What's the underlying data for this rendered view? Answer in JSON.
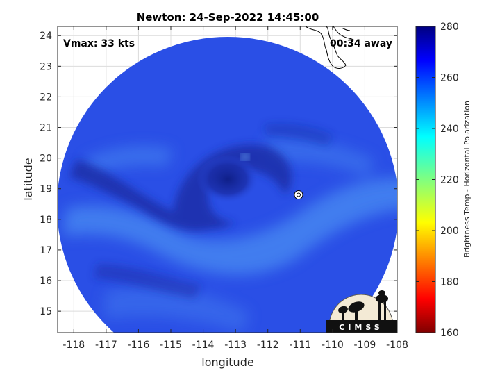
{
  "figure": {
    "title": "Newton: 24-Sep-2022 14:45:00",
    "vmax_text": "Vmax: 33 kts",
    "away_text": "00:34 away",
    "xlabel": "longitude",
    "ylabel": "latitude",
    "logo_text": "CIMSS"
  },
  "map": {
    "lon_range": [
      -118.5,
      -108
    ],
    "lat_range": [
      14.3,
      24.3
    ],
    "lon_ticks": [
      -118,
      -117,
      -116,
      -115,
      -114,
      -113,
      -112,
      -111,
      -110,
      -109,
      -108
    ],
    "lat_ticks": [
      15,
      16,
      17,
      18,
      19,
      20,
      21,
      22,
      23,
      24
    ],
    "lon_tick_labels": [
      "-118",
      "-117",
      "-116",
      "-115",
      "-114",
      "-113",
      "-112",
      "-111",
      "-110",
      "-109",
      "-108"
    ],
    "lat_tick_labels": [
      "15",
      "16",
      "17",
      "18",
      "19",
      "20",
      "21",
      "22",
      "23",
      "24"
    ],
    "grid": true,
    "storm_center": {
      "lon": -111.05,
      "lat": 18.8
    }
  },
  "colorbar": {
    "label": "Brightness Temp - Horizontal Polarization",
    "range": [
      160,
      280
    ],
    "ticks": [
      160,
      180,
      200,
      220,
      240,
      260,
      280
    ],
    "tick_labels": [
      "160",
      "180",
      "200",
      "220",
      "240",
      "260",
      "280"
    ]
  },
  "colors": {
    "swath_base": "#2a4fe6",
    "swath_dark": "#1a2fa8",
    "swath_light": "#4a8cf2"
  }
}
